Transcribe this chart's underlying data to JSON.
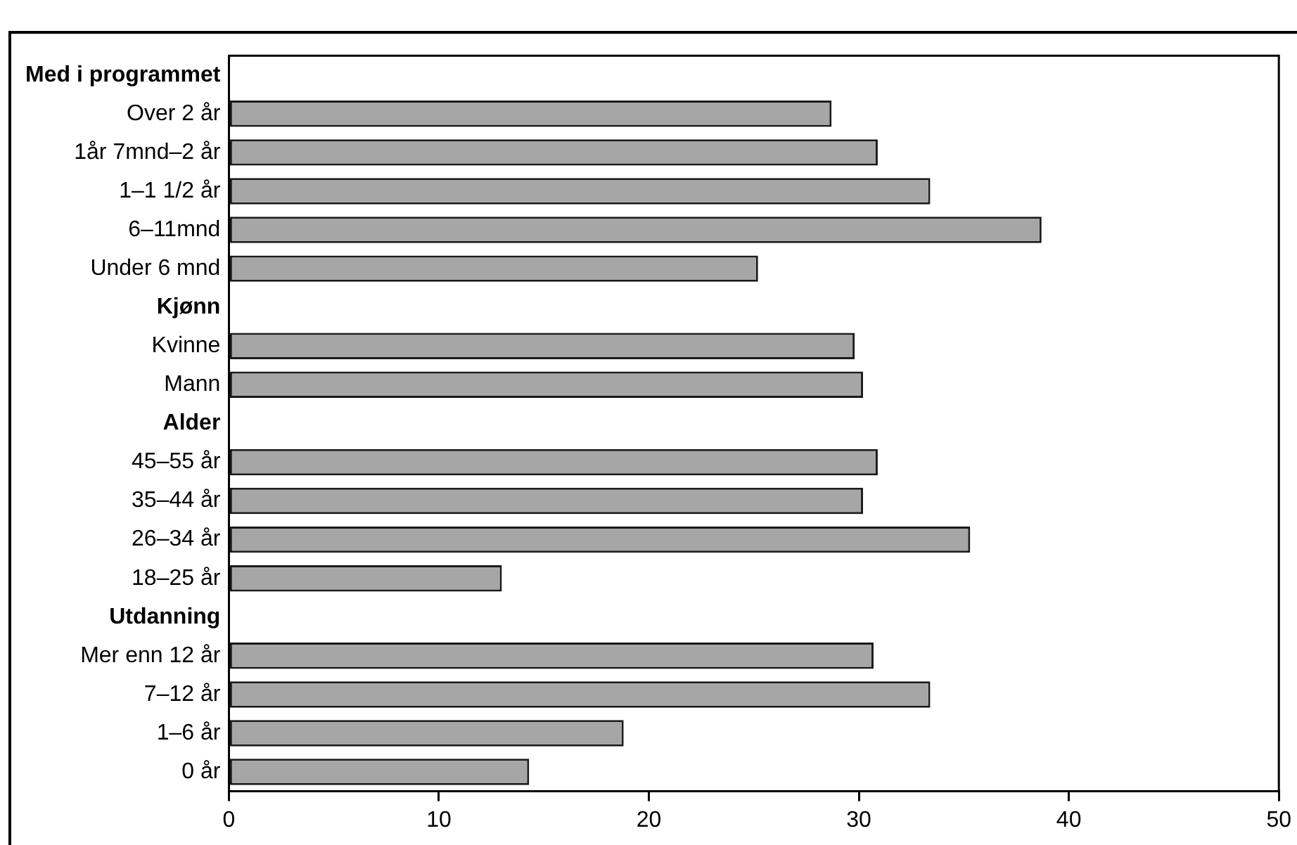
{
  "chart_data": {
    "type": "bar",
    "orientation": "horizontal",
    "categories": [
      "Med i programmet",
      "Over 2 år",
      "1år 7mnd–2 år",
      "1–1 1/2 år",
      "6–11mnd",
      "Under 6 mnd",
      "Kjønn",
      "Kvinne",
      "Mann",
      "Alder",
      "45–55 år",
      "35–44 år",
      "26–34 år",
      "18–25 år",
      "Utdanning",
      "Mer enn 12 år",
      "7–12 år",
      "1–6 år",
      "0 år"
    ],
    "values": [
      null,
      28.7,
      30.9,
      33.4,
      38.7,
      25.2,
      null,
      29.8,
      30.2,
      null,
      30.9,
      30.2,
      35.3,
      13.0,
      null,
      30.7,
      33.4,
      18.8,
      14.3
    ],
    "color": "#a6a6a6",
    "xlim": [
      0,
      50
    ],
    "xticks": [
      0,
      10,
      20,
      30,
      40,
      50
    ],
    "grid": false,
    "legend": false
  }
}
